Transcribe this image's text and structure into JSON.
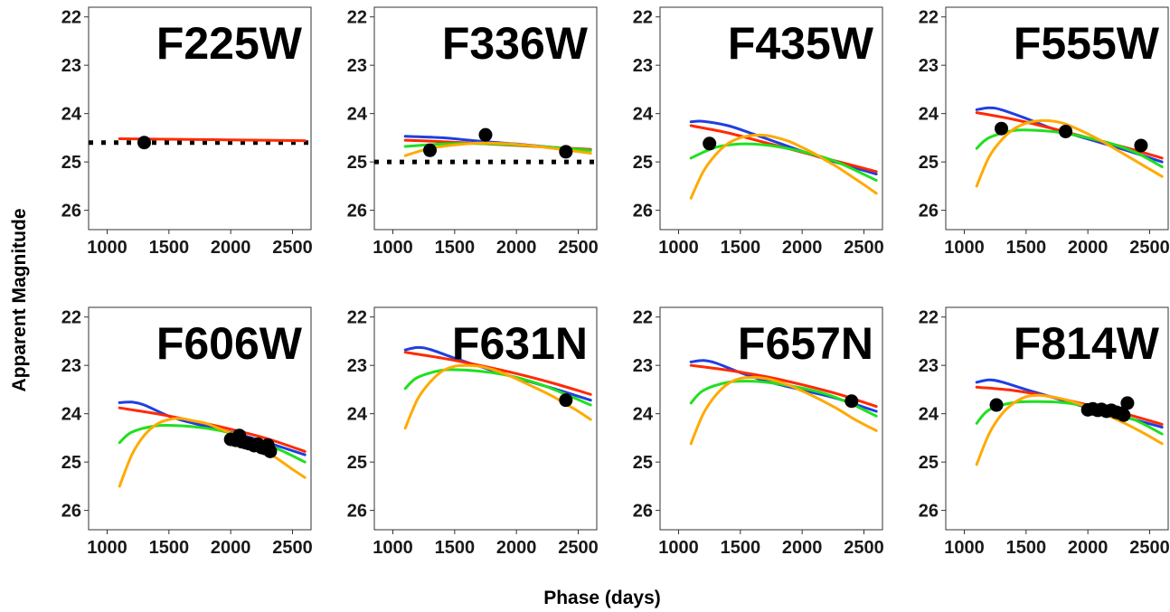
{
  "figure": {
    "xlabel": "Phase (days)",
    "ylabel": "Apparent Magnitude"
  },
  "colors": {
    "blue": "#1f3fe0",
    "red": "#ff2a00",
    "green": "#1fe01f",
    "orange": "#ffaa00",
    "points": "#000000",
    "dotted": "#000000"
  },
  "chart_data": [
    {
      "type": "line",
      "title": "F225W",
      "xlim": [
        850,
        2650
      ],
      "ylim": [
        26.4,
        21.8
      ],
      "y_inverted": true,
      "xticks": [
        1000,
        1500,
        2000,
        2500
      ],
      "yticks": [
        22,
        23,
        24,
        25,
        26
      ],
      "curves": [
        {
          "color": "red",
          "x": [
            1100,
            2600
          ],
          "y": [
            24.52,
            24.56
          ]
        }
      ],
      "points": [
        {
          "x": 1300,
          "y": 24.6
        }
      ],
      "dotted_line": {
        "x": [
          850,
          2650
        ],
        "y": 24.6
      }
    },
    {
      "type": "line",
      "title": "F336W",
      "xlim": [
        850,
        2650
      ],
      "ylim": [
        26.4,
        21.8
      ],
      "y_inverted": true,
      "xticks": [
        1000,
        1500,
        2000,
        2500
      ],
      "yticks": [
        22,
        23,
        24,
        25,
        26
      ],
      "curves": [
        {
          "color": "blue",
          "x": [
            1100,
            1400,
            1700,
            2000,
            2300,
            2600
          ],
          "y": [
            24.47,
            24.5,
            24.57,
            24.63,
            24.7,
            24.76
          ]
        },
        {
          "color": "red",
          "x": [
            1100,
            1400,
            1700,
            2000,
            2300,
            2600
          ],
          "y": [
            24.55,
            24.58,
            24.62,
            24.66,
            24.7,
            24.74
          ]
        },
        {
          "color": "green",
          "x": [
            1100,
            1400,
            1700,
            2000,
            2300,
            2600
          ],
          "y": [
            24.68,
            24.63,
            24.62,
            24.65,
            24.7,
            24.76
          ]
        },
        {
          "color": "orange",
          "x": [
            1100,
            1300,
            1500,
            1700,
            1900,
            2100,
            2300,
            2600
          ],
          "y": [
            24.87,
            24.72,
            24.65,
            24.61,
            24.62,
            24.66,
            24.72,
            24.82
          ]
        }
      ],
      "points": [
        {
          "x": 1300,
          "y": 24.76
        },
        {
          "x": 1750,
          "y": 24.44
        },
        {
          "x": 2400,
          "y": 24.79
        }
      ],
      "dotted_line": {
        "x": [
          850,
          2650
        ],
        "y": 25.0
      }
    },
    {
      "type": "line",
      "title": "F435W",
      "xlim": [
        850,
        2650
      ],
      "ylim": [
        26.4,
        21.8
      ],
      "y_inverted": true,
      "xticks": [
        1000,
        1500,
        2000,
        2500
      ],
      "yticks": [
        22,
        23,
        24,
        25,
        26
      ],
      "curves": [
        {
          "color": "blue",
          "x": [
            1100,
            1200,
            1400,
            1600,
            1800,
            2000,
            2200,
            2400,
            2600
          ],
          "y": [
            24.17,
            24.16,
            24.25,
            24.42,
            24.6,
            24.78,
            24.95,
            25.1,
            25.25
          ]
        },
        {
          "color": "red",
          "x": [
            1100,
            1400,
            1700,
            2000,
            2300,
            2600
          ],
          "y": [
            24.25,
            24.4,
            24.6,
            24.8,
            25.0,
            25.2
          ]
        },
        {
          "color": "green",
          "x": [
            1100,
            1300,
            1500,
            1700,
            1900,
            2100,
            2300,
            2600
          ],
          "y": [
            24.92,
            24.7,
            24.63,
            24.65,
            24.73,
            24.85,
            25.02,
            25.38
          ]
        },
        {
          "color": "orange",
          "x": [
            1100,
            1200,
            1300,
            1400,
            1500,
            1600,
            1700,
            1800,
            1900,
            2000,
            2100,
            2200,
            2300,
            2400,
            2500,
            2600
          ],
          "y": [
            25.75,
            25.2,
            24.85,
            24.62,
            24.5,
            24.45,
            24.45,
            24.5,
            24.58,
            24.7,
            24.83,
            24.98,
            25.13,
            25.3,
            25.47,
            25.65
          ]
        }
      ],
      "points": [
        {
          "x": 1250,
          "y": 24.62
        }
      ]
    },
    {
      "type": "line",
      "title": "F555W",
      "xlim": [
        850,
        2650
      ],
      "ylim": [
        26.4,
        21.8
      ],
      "y_inverted": true,
      "xticks": [
        1000,
        1500,
        2000,
        2500
      ],
      "yticks": [
        22,
        23,
        24,
        25,
        26
      ],
      "curves": [
        {
          "color": "blue",
          "x": [
            1100,
            1200,
            1300,
            1500,
            1700,
            1900,
            2100,
            2300,
            2600
          ],
          "y": [
            23.92,
            23.88,
            23.92,
            24.1,
            24.3,
            24.45,
            24.6,
            24.75,
            25.0
          ]
        },
        {
          "color": "red",
          "x": [
            1100,
            1400,
            1700,
            2000,
            2300,
            2600
          ],
          "y": [
            23.98,
            24.12,
            24.3,
            24.5,
            24.7,
            24.92
          ]
        },
        {
          "color": "green",
          "x": [
            1100,
            1200,
            1400,
            1600,
            1800,
            2000,
            2200,
            2400,
            2600
          ],
          "y": [
            24.72,
            24.5,
            24.35,
            24.35,
            24.4,
            24.5,
            24.63,
            24.82,
            25.1
          ]
        },
        {
          "color": "orange",
          "x": [
            1100,
            1200,
            1300,
            1400,
            1500,
            1600,
            1700,
            1800,
            1900,
            2000,
            2100,
            2200,
            2300,
            2400,
            2500,
            2600
          ],
          "y": [
            25.5,
            24.9,
            24.55,
            24.32,
            24.2,
            24.15,
            24.15,
            24.2,
            24.3,
            24.42,
            24.55,
            24.7,
            24.85,
            25.0,
            25.15,
            25.3
          ]
        }
      ],
      "points": [
        {
          "x": 1300,
          "y": 24.31
        },
        {
          "x": 1820,
          "y": 24.37
        },
        {
          "x": 2430,
          "y": 24.66
        }
      ]
    },
    {
      "type": "line",
      "title": "F606W",
      "xlim": [
        850,
        2650
      ],
      "ylim": [
        26.4,
        21.8
      ],
      "y_inverted": true,
      "xticks": [
        1000,
        1500,
        2000,
        2500
      ],
      "yticks": [
        22,
        23,
        24,
        25,
        26
      ],
      "curves": [
        {
          "color": "blue",
          "x": [
            1100,
            1200,
            1300,
            1500,
            1700,
            1900,
            2100,
            2300,
            2600
          ],
          "y": [
            23.77,
            23.76,
            23.82,
            24.05,
            24.2,
            24.32,
            24.45,
            24.6,
            24.85
          ]
        },
        {
          "color": "red",
          "x": [
            1100,
            1400,
            1700,
            2000,
            2300,
            2600
          ],
          "y": [
            23.88,
            24.0,
            24.15,
            24.32,
            24.52,
            24.78
          ]
        },
        {
          "color": "green",
          "x": [
            1100,
            1200,
            1400,
            1600,
            1800,
            2000,
            2200,
            2400,
            2600
          ],
          "y": [
            24.6,
            24.38,
            24.25,
            24.25,
            24.3,
            24.4,
            24.55,
            24.75,
            25.0
          ]
        },
        {
          "color": "orange",
          "x": [
            1100,
            1200,
            1300,
            1400,
            1500,
            1600,
            1700,
            1800,
            1900,
            2000,
            2100,
            2200,
            2300,
            2400,
            2500,
            2600
          ],
          "y": [
            25.5,
            24.85,
            24.45,
            24.22,
            24.12,
            24.1,
            24.15,
            24.2,
            24.3,
            24.4,
            24.52,
            24.65,
            24.8,
            24.97,
            25.15,
            25.32
          ]
        }
      ],
      "points": [
        {
          "x": 2000,
          "y": 24.53
        },
        {
          "x": 2040,
          "y": 24.55
        },
        {
          "x": 2070,
          "y": 24.45
        },
        {
          "x": 2090,
          "y": 24.58
        },
        {
          "x": 2120,
          "y": 24.6
        },
        {
          "x": 2150,
          "y": 24.62
        },
        {
          "x": 2190,
          "y": 24.66
        },
        {
          "x": 2220,
          "y": 24.63
        },
        {
          "x": 2250,
          "y": 24.7
        },
        {
          "x": 2280,
          "y": 24.72
        },
        {
          "x": 2300,
          "y": 24.65
        },
        {
          "x": 2320,
          "y": 24.78
        }
      ]
    },
    {
      "type": "line",
      "title": "F631N",
      "xlim": [
        850,
        2650
      ],
      "ylim": [
        26.4,
        21.8
      ],
      "y_inverted": true,
      "xticks": [
        1000,
        1500,
        2000,
        2500
      ],
      "yticks": [
        22,
        23,
        24,
        25,
        26
      ],
      "curves": [
        {
          "color": "blue",
          "x": [
            1100,
            1200,
            1300,
            1500,
            1700,
            1900,
            2100,
            2300,
            2600
          ],
          "y": [
            22.68,
            22.63,
            22.67,
            22.85,
            23.02,
            23.18,
            23.33,
            23.48,
            23.72
          ]
        },
        {
          "color": "red",
          "x": [
            1100,
            1400,
            1700,
            2000,
            2300,
            2600
          ],
          "y": [
            22.73,
            22.85,
            23.0,
            23.17,
            23.37,
            23.6
          ]
        },
        {
          "color": "green",
          "x": [
            1100,
            1200,
            1400,
            1600,
            1800,
            2000,
            2200,
            2400,
            2600
          ],
          "y": [
            23.48,
            23.25,
            23.1,
            23.1,
            23.15,
            23.25,
            23.4,
            23.6,
            23.82
          ]
        },
        {
          "color": "orange",
          "x": [
            1100,
            1200,
            1300,
            1400,
            1500,
            1600,
            1700,
            1800,
            1900,
            2000,
            2100,
            2200,
            2300,
            2400,
            2500,
            2600
          ],
          "y": [
            24.3,
            23.7,
            23.35,
            23.12,
            23.02,
            23.0,
            23.02,
            23.08,
            23.17,
            23.28,
            23.4,
            23.52,
            23.65,
            23.8,
            23.95,
            24.12
          ]
        }
      ],
      "points": [
        {
          "x": 2400,
          "y": 23.72
        }
      ]
    },
    {
      "type": "line",
      "title": "F657N",
      "xlim": [
        850,
        2650
      ],
      "ylim": [
        26.4,
        21.8
      ],
      "y_inverted": true,
      "xticks": [
        1000,
        1500,
        2000,
        2500
      ],
      "yticks": [
        22,
        23,
        24,
        25,
        26
      ],
      "curves": [
        {
          "color": "blue",
          "x": [
            1100,
            1200,
            1300,
            1500,
            1700,
            1900,
            2100,
            2300,
            2600
          ],
          "y": [
            22.93,
            22.9,
            22.95,
            23.15,
            23.32,
            23.45,
            23.57,
            23.7,
            23.95
          ]
        },
        {
          "color": "red",
          "x": [
            1100,
            1400,
            1700,
            2000,
            2300,
            2600
          ],
          "y": [
            23.0,
            23.1,
            23.23,
            23.4,
            23.6,
            23.85
          ]
        },
        {
          "color": "green",
          "x": [
            1100,
            1200,
            1400,
            1600,
            1800,
            2000,
            2200,
            2400,
            2600
          ],
          "y": [
            23.78,
            23.52,
            23.35,
            23.33,
            23.38,
            23.47,
            23.6,
            23.8,
            24.05
          ]
        },
        {
          "color": "orange",
          "x": [
            1100,
            1200,
            1300,
            1400,
            1500,
            1600,
            1700,
            1800,
            1900,
            2000,
            2100,
            2200,
            2300,
            2400,
            2500,
            2600
          ],
          "y": [
            24.62,
            24.0,
            23.62,
            23.38,
            23.27,
            23.25,
            23.27,
            23.33,
            23.42,
            23.53,
            23.65,
            23.78,
            23.92,
            24.08,
            24.22,
            24.35
          ]
        }
      ],
      "points": [
        {
          "x": 2400,
          "y": 23.74
        }
      ]
    },
    {
      "type": "line",
      "title": "F814W",
      "xlim": [
        850,
        2650
      ],
      "ylim": [
        26.4,
        21.8
      ],
      "y_inverted": true,
      "xticks": [
        1000,
        1500,
        2000,
        2500
      ],
      "yticks": [
        22,
        23,
        24,
        25,
        26
      ],
      "curves": [
        {
          "color": "blue",
          "x": [
            1100,
            1200,
            1300,
            1500,
            1700,
            1900,
            2100,
            2300,
            2600
          ],
          "y": [
            23.35,
            23.3,
            23.34,
            23.5,
            23.65,
            23.8,
            23.95,
            24.07,
            24.28
          ]
        },
        {
          "color": "red",
          "x": [
            1100,
            1400,
            1700,
            2000,
            2300,
            2600
          ],
          "y": [
            23.45,
            23.52,
            23.65,
            23.82,
            24.0,
            24.22
          ]
        },
        {
          "color": "green",
          "x": [
            1100,
            1200,
            1400,
            1600,
            1800,
            2000,
            2200,
            2400,
            2600
          ],
          "y": [
            24.2,
            23.92,
            23.77,
            23.75,
            23.77,
            23.85,
            23.98,
            24.15,
            24.42
          ]
        },
        {
          "color": "orange",
          "x": [
            1100,
            1200,
            1300,
            1400,
            1500,
            1600,
            1700,
            1800,
            1900,
            2000,
            2100,
            2200,
            2300,
            2400,
            2500,
            2600
          ],
          "y": [
            25.05,
            24.42,
            24.02,
            23.78,
            23.65,
            23.62,
            23.65,
            23.7,
            23.77,
            23.86,
            23.96,
            24.08,
            24.2,
            24.33,
            24.47,
            24.62
          ]
        }
      ],
      "points": [
        {
          "x": 1260,
          "y": 23.82
        },
        {
          "x": 2000,
          "y": 23.92
        },
        {
          "x": 2040,
          "y": 23.9
        },
        {
          "x": 2080,
          "y": 23.93
        },
        {
          "x": 2110,
          "y": 23.91
        },
        {
          "x": 2150,
          "y": 23.95
        },
        {
          "x": 2190,
          "y": 23.93
        },
        {
          "x": 2230,
          "y": 23.97
        },
        {
          "x": 2260,
          "y": 23.99
        },
        {
          "x": 2290,
          "y": 24.03
        },
        {
          "x": 2320,
          "y": 23.78
        }
      ]
    }
  ]
}
